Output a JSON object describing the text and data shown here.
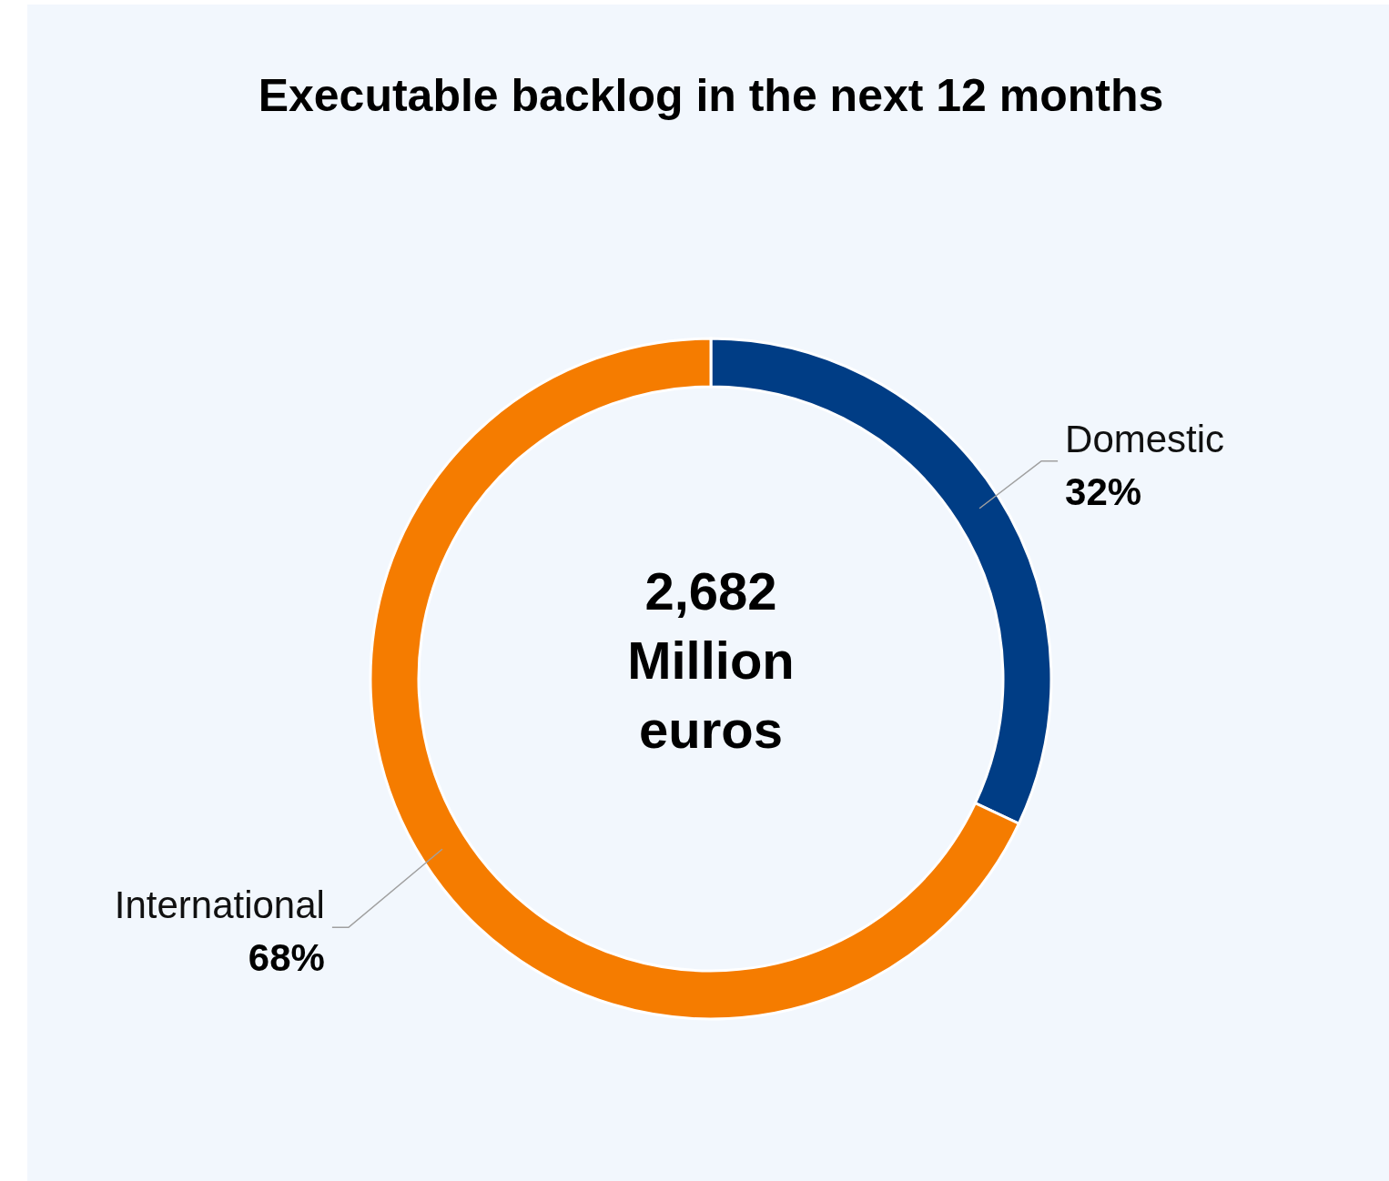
{
  "chart_data": {
    "type": "donut",
    "title": "Executable backlog in the next 12 months",
    "categories": [
      "Domestic",
      "International"
    ],
    "values": [
      32,
      68
    ],
    "colors": [
      "#003d85",
      "#f57c00"
    ],
    "value_labels": [
      "32%",
      "68%"
    ],
    "annotations": [
      "2,682\nMillion\neuros"
    ]
  }
}
